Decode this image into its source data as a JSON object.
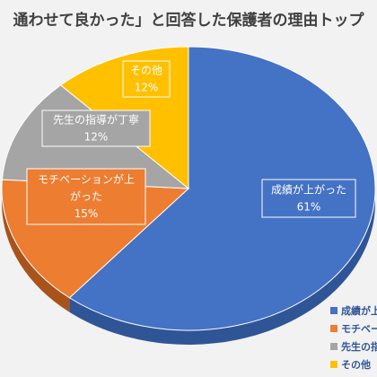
{
  "chart_data": {
    "type": "pie",
    "title": "通わせて良かった」と回答した保護者の理由トップ",
    "categories": [
      "成績が上がった",
      "モチベーションが上がった",
      "先生の指導が丁寧",
      "その他"
    ],
    "values": [
      61,
      15,
      12,
      12
    ],
    "data_labels": [
      {
        "lines": [
          "成績が上がった",
          "61%"
        ]
      },
      {
        "lines": [
          "モチベーションが上",
          "がった",
          "15%"
        ]
      },
      {
        "lines": [
          "先生の指導が丁寧",
          "12%"
        ]
      },
      {
        "lines": [
          "その他",
          "12%"
        ]
      }
    ],
    "legend": {
      "placement": "bottom-right",
      "entries": [
        "成績が上",
        "モチベー",
        "先生の指",
        "その他"
      ]
    },
    "colors": [
      "#4472c4",
      "#ed7d31",
      "#a5a5a5",
      "#ffc000"
    ],
    "side_colors": [
      "#2f5597",
      "#a9531c",
      "#7b7b7b",
      "#bf9000"
    ]
  }
}
